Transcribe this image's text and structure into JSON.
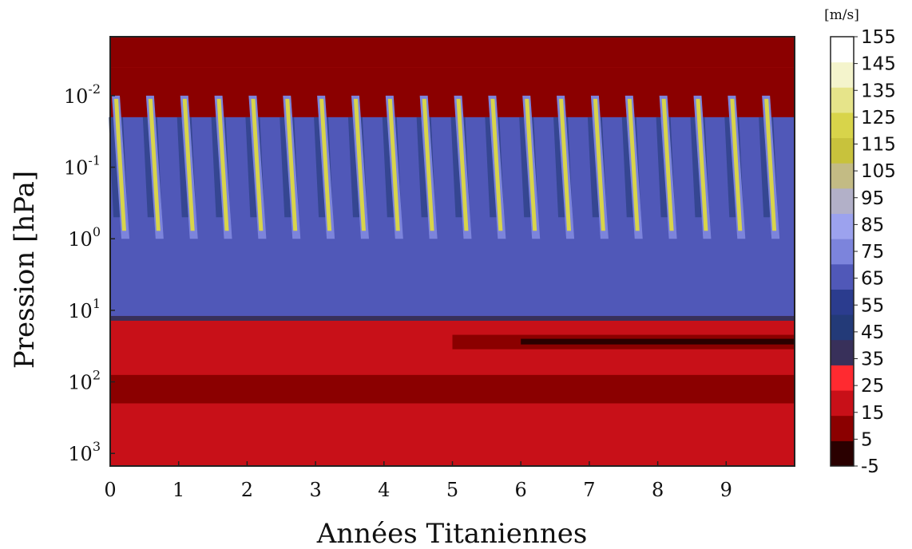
{
  "chart_data": {
    "type": "heatmap",
    "title": "",
    "xlabel": "Années Titaniennes",
    "ylabel": "Pression [hPa]",
    "xlim": [
      0,
      10
    ],
    "ylim_hpa": [
      1500,
      0.0015
    ],
    "y_scale": "log",
    "y_inverted": true,
    "grid": false,
    "x_ticks": [
      0,
      1,
      2,
      3,
      4,
      5,
      6,
      7,
      8,
      9
    ],
    "y_ticks": [
      {
        "value": 0.01,
        "base": "10",
        "exp": "-2"
      },
      {
        "value": 0.1,
        "base": "10",
        "exp": "-1"
      },
      {
        "value": 1,
        "base": "10",
        "exp": "0"
      },
      {
        "value": 10,
        "base": "10",
        "exp": "1"
      },
      {
        "value": 100,
        "base": "10",
        "exp": "2"
      },
      {
        "value": 1000,
        "base": "10",
        "exp": "3"
      }
    ],
    "colorbar": {
      "unit": "[m/s]",
      "levels": [
        -5,
        5,
        15,
        25,
        35,
        45,
        55,
        65,
        75,
        85,
        95,
        105,
        115,
        125,
        135,
        145,
        155
      ],
      "labels": [
        "155",
        "145",
        "135",
        "125",
        "115",
        "105",
        "95",
        "85",
        "75",
        "65",
        "55",
        "45",
        "35",
        "25",
        "15",
        "5",
        "-5"
      ],
      "colors": [
        "#2a0000",
        "#8b0000",
        "#c81018",
        "#ff2a30",
        "#38305a",
        "#233a78",
        "#2b3c8e",
        "#5058b8",
        "#7c84dc",
        "#9ca2ee",
        "#b2b0c8",
        "#c3bb84",
        "#c8c23c",
        "#d8d44a",
        "#e6e48a",
        "#f4f4cc",
        "#ffffff"
      ]
    },
    "wind_structure": {
      "jet_bursts_per_titan_year": 2,
      "jet_peak_ms": 125,
      "jet_pressure_range_hpa": [
        0.01,
        1
      ],
      "stratosphere_background_ms": 70,
      "upper_layer_ms": 10,
      "troposphere_ms": [
        5,
        15
      ],
      "deep_layer_trend": "weakens toward -5 m/s after year 5"
    }
  }
}
